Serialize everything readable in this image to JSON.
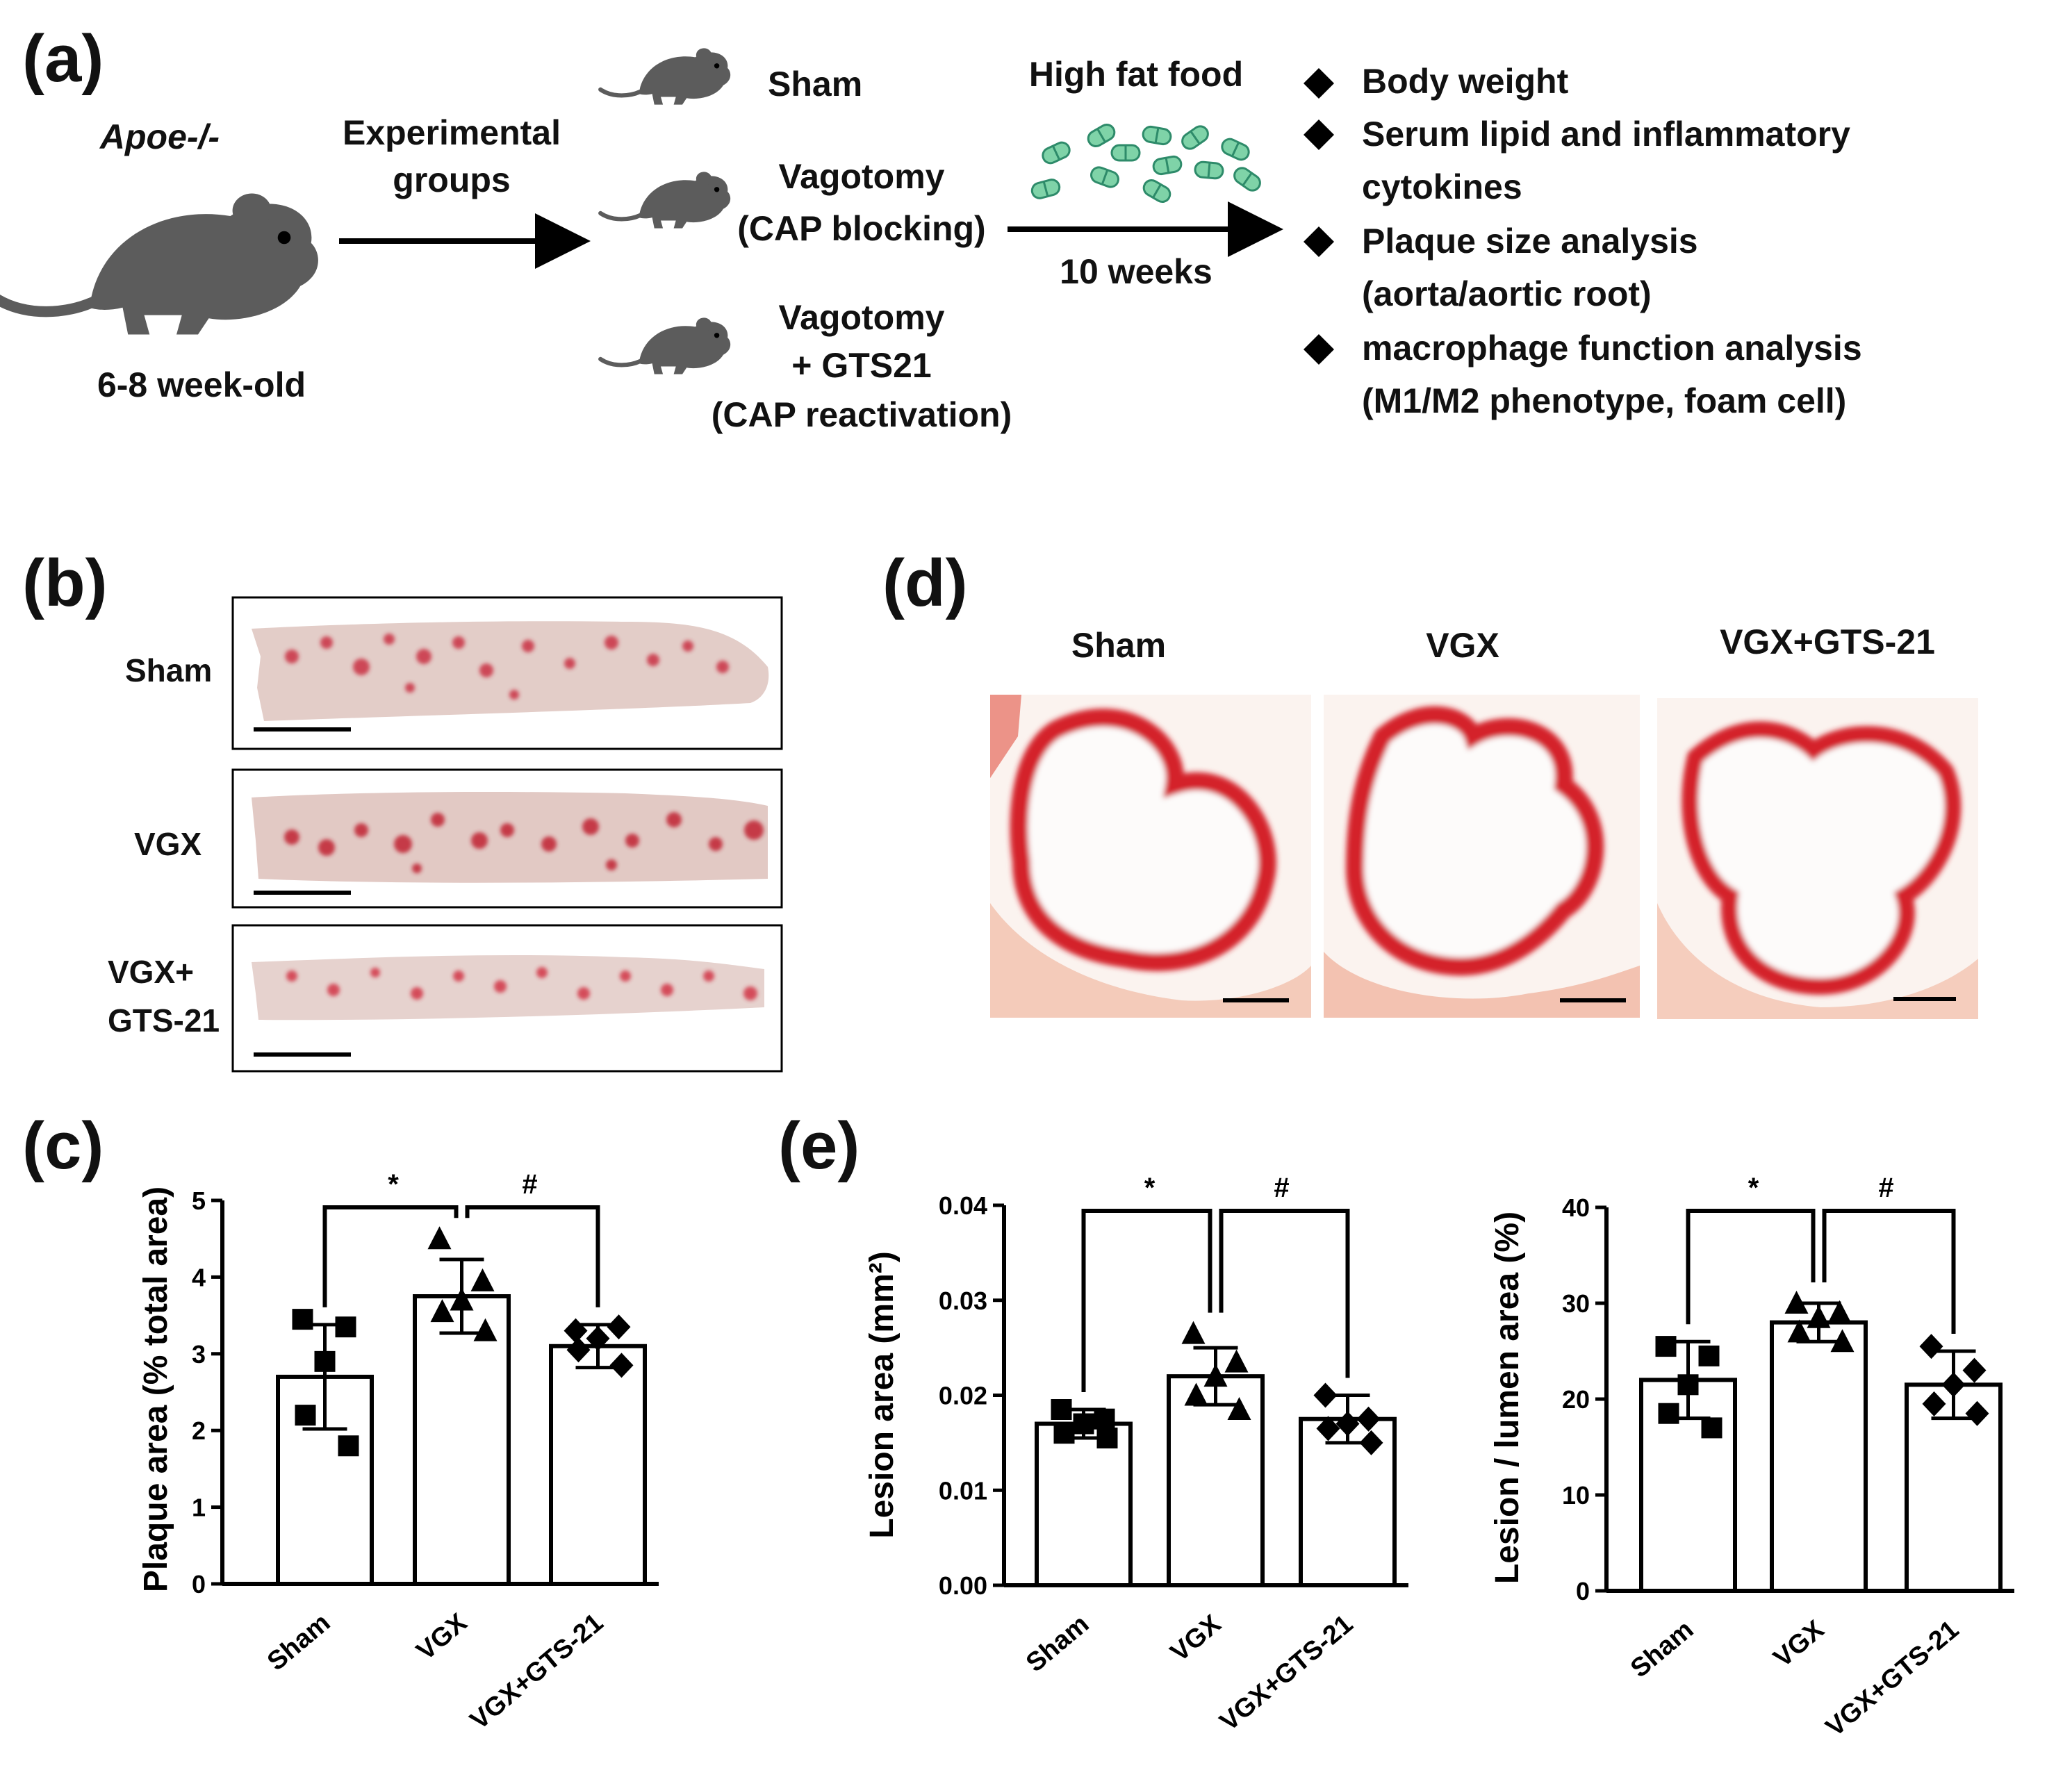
{
  "panel_a": {
    "label": "(a)",
    "strain": "Apoe-/-",
    "age": "6-8 week-old",
    "arrow1_label_line1": "Experimental",
    "arrow1_label_line2": "groups",
    "groups": {
      "sham": "Sham",
      "vagotomy_line1": "Vagotomy",
      "vagotomy_line2": "(CAP blocking)",
      "gts_line1": "Vagotomy",
      "gts_line2": "+ GTS21",
      "gts_line3": "(CAP reactivation)"
    },
    "diet": "High fat food",
    "duration": "10 weeks",
    "outcomes": [
      {
        "line1": "Body weight",
        "line2": ""
      },
      {
        "line1": "Serum lipid and inflammatory",
        "line2": "cytokines"
      },
      {
        "line1": "Plaque size analysis",
        "line2": "(aorta/aortic root)"
      },
      {
        "line1": "macrophage function analysis",
        "line2": "(M1/M2 phenotype, foam cell)"
      }
    ]
  },
  "panel_b": {
    "label": "(b)",
    "rows": [
      {
        "line1": "Sham",
        "line2": ""
      },
      {
        "line1": "VGX",
        "line2": ""
      },
      {
        "line1": "VGX+",
        "line2": "GTS-21"
      }
    ]
  },
  "panel_d": {
    "label": "(d)",
    "columns": [
      "Sham",
      "VGX",
      "VGX+GTS-21"
    ]
  },
  "panel_c": {
    "label": "(c)"
  },
  "panel_e": {
    "label": "(e)"
  },
  "colors": {
    "stain_red": "#d4242a",
    "pill_green": "#7fd3a8",
    "pill_stroke": "#2e8b6a",
    "mouse_gray": "#5c5c5c"
  },
  "chart_data": [
    {
      "id": "c",
      "type": "bar",
      "categories": [
        "Sham",
        "VGX",
        "VGX+GTS-21"
      ],
      "values": [
        2.7,
        3.75,
        3.1
      ],
      "errors": [
        0.68,
        0.48,
        0.28
      ],
      "points": [
        [
          3.45,
          3.35,
          2.9,
          2.2,
          1.8
        ],
        [
          4.5,
          3.95,
          3.7,
          3.55,
          3.3
        ],
        [
          3.3,
          3.35,
          3.2,
          3.05,
          2.85
        ]
      ],
      "markers": [
        "square",
        "triangle",
        "diamond"
      ],
      "ylabel": "Plaque area (% total area)",
      "ylim": [
        0,
        5
      ],
      "yticks": [
        "0",
        "1",
        "2",
        "3",
        "4",
        "5"
      ],
      "significance": [
        "*",
        "#"
      ]
    },
    {
      "id": "e1",
      "type": "bar",
      "categories": [
        "Sham",
        "VGX",
        "VGX+GTS-21"
      ],
      "values": [
        0.017,
        0.022,
        0.0175
      ],
      "errors": [
        0.0015,
        0.003,
        0.0025
      ],
      "points": [
        [
          0.0185,
          0.0175,
          0.017,
          0.016,
          0.0155
        ],
        [
          0.0265,
          0.0235,
          0.022,
          0.02,
          0.0185
        ],
        [
          0.02,
          0.0175,
          0.017,
          0.0165,
          0.015
        ]
      ],
      "markers": [
        "square",
        "triangle",
        "diamond"
      ],
      "ylabel": "Lesion area (mm²)",
      "ylim": [
        0,
        0.04
      ],
      "yticks": [
        "0.00",
        "0.01",
        "0.02",
        "0.03",
        "0.04"
      ],
      "significance": [
        "*",
        "#"
      ]
    },
    {
      "id": "e2",
      "type": "bar",
      "categories": [
        "Sham",
        "VGX",
        "VGX+GTS-21"
      ],
      "values": [
        22,
        28,
        21.5
      ],
      "errors": [
        4,
        2,
        3.5
      ],
      "points": [
        [
          25.5,
          24.5,
          21.5,
          18.5,
          17
        ],
        [
          30,
          29,
          28.5,
          27,
          26
        ],
        [
          25.5,
          23,
          21.5,
          19.5,
          18.5
        ]
      ],
      "markers": [
        "square",
        "triangle",
        "diamond"
      ],
      "ylabel": "Lesion / lumen area (%)",
      "ylim": [
        0,
        40
      ],
      "yticks": [
        "0",
        "10",
        "20",
        "30",
        "40"
      ],
      "significance": [
        "*",
        "#"
      ]
    }
  ]
}
